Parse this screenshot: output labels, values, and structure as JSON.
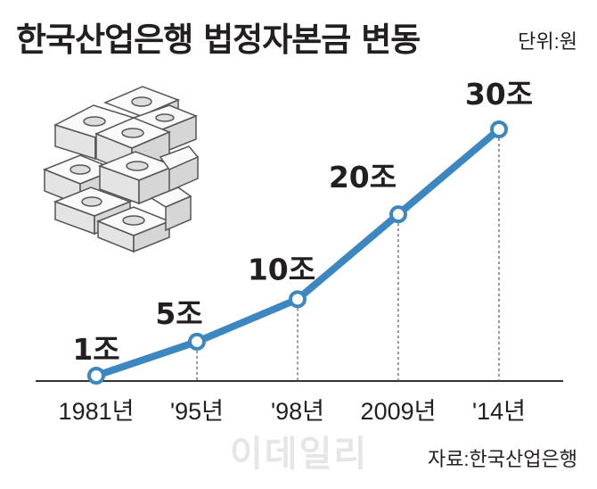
{
  "header": {
    "title": "한국산업은행 법정자본금 변동",
    "unit": "단위:원"
  },
  "footer": {
    "source": "자료:한국산업은행",
    "watermark": "이데일리"
  },
  "colors": {
    "line": "#3c87c0",
    "marker_fill": "#ffffff",
    "axis": "#333333",
    "text": "#231f20"
  },
  "illustration": {
    "icon": "stacked-banknote-bundles-icon"
  },
  "chart_data": {
    "type": "line",
    "title": "한국산업은행 법정자본금 변동",
    "unit": "단위:원",
    "categories": [
      "1981년",
      "'95년",
      "'98년",
      "2009년",
      "'14년"
    ],
    "values": [
      1,
      5,
      10,
      20,
      30
    ],
    "value_labels": [
      "1조",
      "5조",
      "10조",
      "20조",
      "30조"
    ],
    "ylim": [
      0,
      30
    ],
    "grid": false,
    "legend": "none",
    "source": "자료:한국산업은행"
  }
}
